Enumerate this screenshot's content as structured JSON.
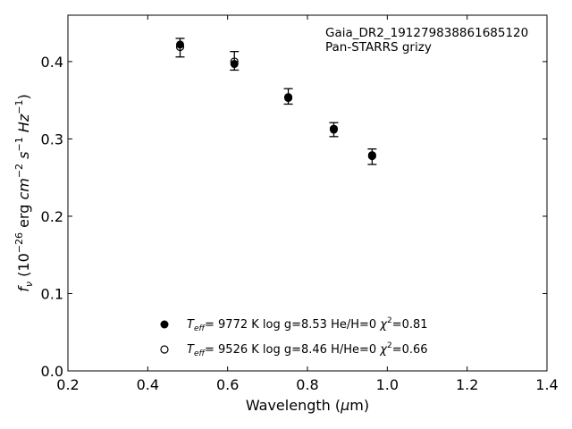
{
  "chart_data": {
    "type": "scatter",
    "title": "",
    "xlabel": "Wavelength (μm)",
    "ylabel": "fν (10⁻²⁶ erg cm⁻² s⁻¹ Hz⁻¹)",
    "xlim": [
      0.2,
      1.4
    ],
    "ylim": [
      0.0,
      0.46
    ],
    "x_ticks": [
      "0.2",
      "0.4",
      "0.6",
      "0.8",
      "1.0",
      "1.2",
      "1.4"
    ],
    "y_ticks": [
      "0.0",
      "0.1",
      "0.2",
      "0.3",
      "0.4"
    ],
    "grid": false,
    "legend_position": "lower-center",
    "annotation": {
      "object": "Gaia_DR2_191279838861685120",
      "filters": "Pan-STARRS grizy"
    },
    "observed": {
      "x": [
        0.481,
        0.617,
        0.752,
        0.866,
        0.962
      ],
      "y": [
        0.418,
        0.401,
        0.355,
        0.312,
        0.277
      ],
      "err": [
        0.012,
        0.012,
        0.01,
        0.009,
        0.01
      ],
      "color": "#000000"
    },
    "series": [
      {
        "name": "Teff= 9772 K  log g=8.53  He/H=0  χ²=0.81",
        "marker": "filled",
        "x": [
          0.481,
          0.617,
          0.752,
          0.866,
          0.962
        ],
        "y": [
          0.422,
          0.397,
          0.353,
          0.312,
          0.279
        ]
      },
      {
        "name": "Teff= 9526 K  log g=8.46  H/He=0  χ²=0.66",
        "marker": "open",
        "x": [
          0.481,
          0.617,
          0.752,
          0.866,
          0.962
        ],
        "y": [
          0.419,
          0.4,
          0.354,
          0.313,
          0.278
        ]
      }
    ],
    "legend_entries": [
      {
        "teff_label": "=  9772 K  log g=8.53  He/H=0  ",
        "chi_label": "=0.81"
      },
      {
        "teff_label": "=  9526 K  log g=8.46  H/He=0  ",
        "chi_label": "=0.66"
      }
    ]
  }
}
